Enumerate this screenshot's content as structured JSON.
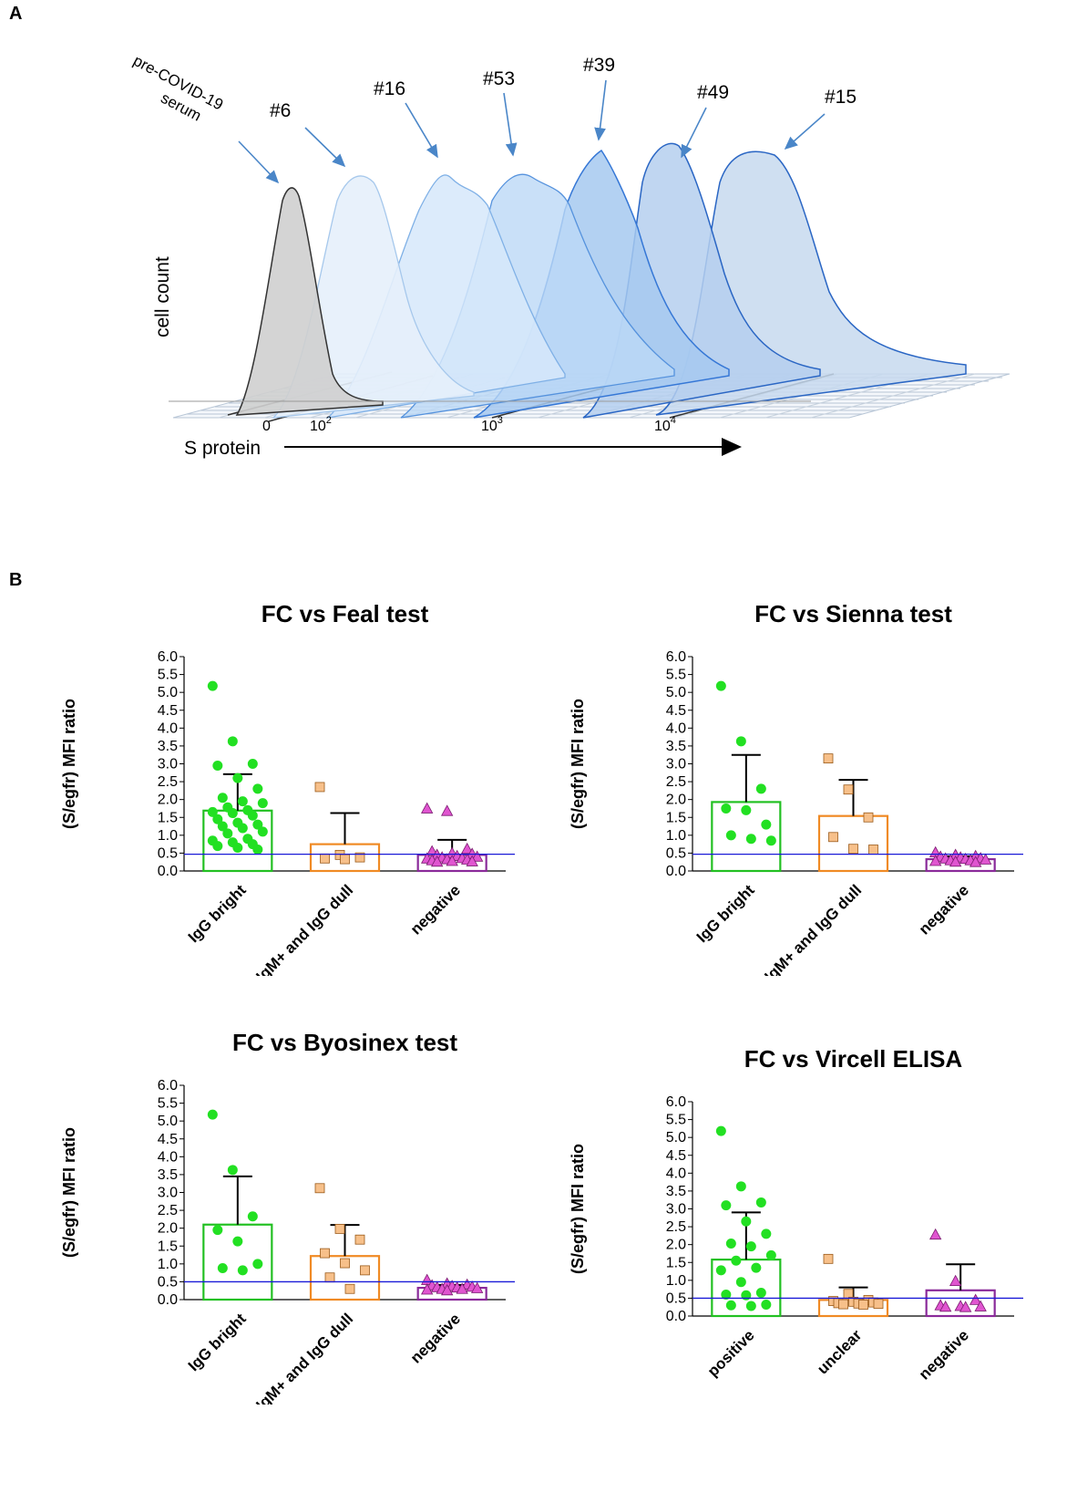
{
  "panel_a": {
    "label": "A",
    "ylabel": "cell count",
    "xlabel": "S protein",
    "tick_zero": "0",
    "ticks": [
      {
        "base": "10",
        "exp": "2"
      },
      {
        "base": "10",
        "exp": "3"
      },
      {
        "base": "10",
        "exp": "4"
      }
    ],
    "sample_labels": [
      "pre-COVID-19 serum",
      "#6",
      "#16",
      "#53",
      "#39",
      "#49",
      "#15"
    ],
    "colors": {
      "control": "#c8c8c8",
      "blue_light": "#dcebfb",
      "blue_mid": "#a9cdf2",
      "blue_dark": "#2f6fcf"
    }
  },
  "panel_b": {
    "label": "B"
  },
  "chart_data": [
    {
      "type": "bar",
      "title": "FC vs Feal test",
      "ylabel": "(S/egfr) MFI ratio",
      "ylim": [
        0,
        6
      ],
      "yticks": [
        "0.0",
        "0.5",
        "1.0",
        "1.5",
        "2.0",
        "2.5",
        "3.0",
        "3.5",
        "4.0",
        "4.5",
        "5.0",
        "5.5",
        "6.0"
      ],
      "threshold": 0.47,
      "categories": [
        "IgG bright",
        "IgM+ and IgG dull",
        "negative"
      ],
      "values": [
        1.69,
        0.75,
        0.45
      ],
      "errors": [
        1.02,
        0.87,
        0.42
      ],
      "series": [
        {
          "name": "IgG bright",
          "marker": "circle",
          "color": "#22e022",
          "points": [
            5.18,
            3.63,
            3.0,
            2.95,
            2.6,
            2.3,
            2.05,
            1.95,
            1.9,
            1.78,
            1.7,
            1.65,
            1.62,
            1.55,
            1.45,
            1.35,
            1.3,
            1.25,
            1.2,
            1.1,
            1.05,
            0.9,
            0.85,
            0.8,
            0.75,
            0.7,
            0.65,
            0.6
          ]
        },
        {
          "name": "IgM+ and IgG dull",
          "marker": "square",
          "color": "#f7c08a",
          "points": [
            2.35,
            0.45,
            0.38,
            0.35,
            0.33
          ]
        },
        {
          "name": "negative",
          "marker": "triangle",
          "color": "#e055d0",
          "points": [
            1.75,
            1.68,
            0.62,
            0.55,
            0.5,
            0.48,
            0.45,
            0.42,
            0.4,
            0.38,
            0.36,
            0.35,
            0.33,
            0.32,
            0.3,
            0.28,
            0.27,
            0.26
          ]
        }
      ]
    },
    {
      "type": "bar",
      "title": "FC vs Sienna test",
      "ylabel": "(S/egfr) MFI ratio",
      "ylim": [
        0,
        6
      ],
      "yticks": [
        "0.0",
        "0.5",
        "1.0",
        "1.5",
        "2.0",
        "2.5",
        "3.0",
        "3.5",
        "4.0",
        "4.5",
        "5.0",
        "5.5",
        "6.0"
      ],
      "threshold": 0.47,
      "categories": [
        "IgG bright",
        "IgM+ and IgG dull",
        "negative"
      ],
      "values": [
        1.93,
        1.54,
        0.33
      ],
      "errors": [
        1.32,
        1.01,
        0.08
      ],
      "series": [
        {
          "name": "IgG bright",
          "marker": "circle",
          "color": "#22e022",
          "points": [
            5.18,
            3.63,
            2.3,
            1.75,
            1.7,
            1.3,
            1.0,
            0.9,
            0.85
          ]
        },
        {
          "name": "IgM+ and IgG dull",
          "marker": "square",
          "color": "#f7c08a",
          "points": [
            3.15,
            2.28,
            1.5,
            0.95,
            0.62,
            0.6
          ]
        },
        {
          "name": "negative",
          "marker": "triangle",
          "color": "#e055d0",
          "points": [
            0.52,
            0.45,
            0.42,
            0.4,
            0.38,
            0.36,
            0.35,
            0.34,
            0.32,
            0.3,
            0.3,
            0.28,
            0.26,
            0.25
          ]
        }
      ]
    },
    {
      "type": "bar",
      "title": "FC vs Byosinex test",
      "ylabel": "(S/egfr) MFI ratio",
      "ylim": [
        0,
        6
      ],
      "yticks": [
        "0.0",
        "0.5",
        "1.0",
        "1.5",
        "2.0",
        "2.5",
        "3.0",
        "3.5",
        "4.0",
        "4.5",
        "5.0",
        "5.5",
        "6.0"
      ],
      "threshold": 0.5,
      "categories": [
        "IgG bright",
        "IgM+ and IgG dull",
        "negative"
      ],
      "values": [
        2.1,
        1.22,
        0.33
      ],
      "errors": [
        1.35,
        0.87,
        0.08
      ],
      "series": [
        {
          "name": "IgG bright",
          "marker": "circle",
          "color": "#22e022",
          "points": [
            5.18,
            3.63,
            2.33,
            1.95,
            1.63,
            1.0,
            0.88,
            0.82
          ]
        },
        {
          "name": "IgM+ and IgG dull",
          "marker": "square",
          "color": "#f7c08a",
          "points": [
            3.12,
            1.98,
            1.68,
            1.3,
            1.02,
            0.82,
            0.62,
            0.3
          ]
        },
        {
          "name": "negative",
          "marker": "triangle",
          "color": "#e055d0",
          "points": [
            0.55,
            0.45,
            0.42,
            0.4,
            0.38,
            0.36,
            0.35,
            0.34,
            0.32,
            0.3,
            0.3,
            0.28,
            0.26
          ]
        }
      ]
    },
    {
      "type": "bar",
      "title": "FC vs Vircell ELISA",
      "ylabel": "(S/egfr) MFI ratio",
      "ylim": [
        0,
        6
      ],
      "yticks": [
        "0.0",
        "0.5",
        "1.0",
        "1.5",
        "2.0",
        "2.5",
        "3.0",
        "3.5",
        "4.0",
        "4.5",
        "5.0",
        "5.5",
        "6.0"
      ],
      "threshold": 0.5,
      "categories": [
        "positive",
        "unclear",
        "negative"
      ],
      "values": [
        1.58,
        0.45,
        0.72
      ],
      "errors": [
        1.32,
        0.35,
        0.73
      ],
      "series": [
        {
          "name": "positive",
          "marker": "circle",
          "color": "#22e022",
          "points": [
            5.18,
            3.63,
            3.18,
            3.1,
            2.65,
            2.3,
            2.03,
            1.95,
            1.7,
            1.55,
            1.35,
            1.28,
            0.95,
            0.65,
            0.6,
            0.58,
            0.32,
            0.3,
            0.28
          ]
        },
        {
          "name": "unclear",
          "marker": "square",
          "color": "#f7c08a",
          "points": [
            1.6,
            0.62,
            0.45,
            0.42,
            0.4,
            0.38,
            0.36,
            0.35,
            0.34,
            0.33,
            0.32
          ]
        },
        {
          "name": "negative",
          "marker": "triangle",
          "color": "#e055d0",
          "points": [
            2.28,
            0.98,
            0.45,
            0.3,
            0.28,
            0.27,
            0.26,
            0.25
          ]
        }
      ]
    }
  ]
}
